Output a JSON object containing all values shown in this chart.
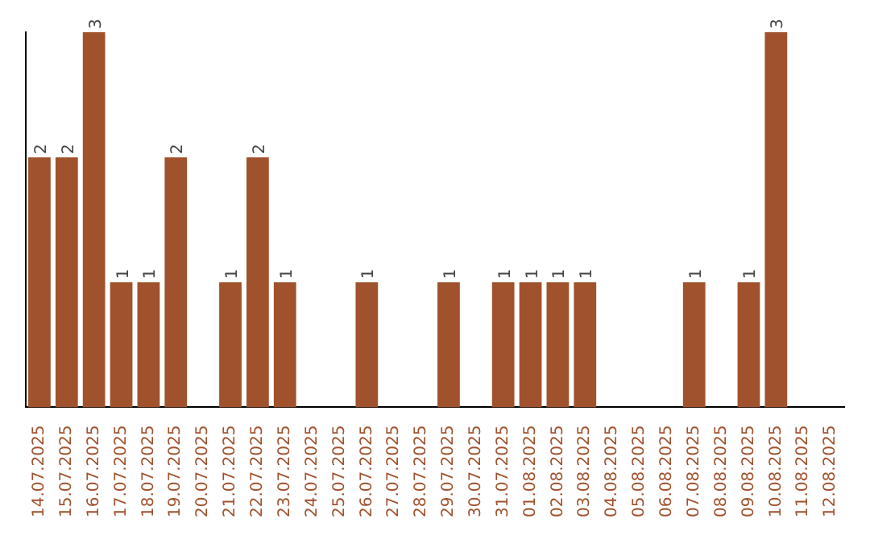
{
  "chart_data": {
    "type": "bar",
    "categories": [
      "14.07.2025",
      "15.07.2025",
      "16.07.2025",
      "17.07.2025",
      "18.07.2025",
      "19.07.2025",
      "20.07.2025",
      "21.07.2025",
      "22.07.2025",
      "23.07.2025",
      "24.07.2025",
      "25.07.2025",
      "26.07.2025",
      "27.07.2025",
      "28.07.2025",
      "29.07.2025",
      "30.07.2025",
      "31.07.2025",
      "01.08.2025",
      "02.08.2025",
      "03.08.2025",
      "04.08.2025",
      "05.08.2025",
      "06.08.2025",
      "07.08.2025",
      "08.08.2025",
      "09.08.2025",
      "10.08.2025",
      "11.08.2025",
      "12.08.2025"
    ],
    "values": [
      2,
      2,
      3,
      1,
      1,
      2,
      null,
      1,
      2,
      1,
      null,
      null,
      1,
      null,
      null,
      1,
      null,
      1,
      1,
      1,
      1,
      null,
      null,
      null,
      1,
      null,
      1,
      3,
      null,
      null
    ],
    "color": "#a0522d",
    "ylim": [
      0,
      3
    ],
    "data_labels": true,
    "tick_labels": "x",
    "grid": false,
    "legend": false
  }
}
